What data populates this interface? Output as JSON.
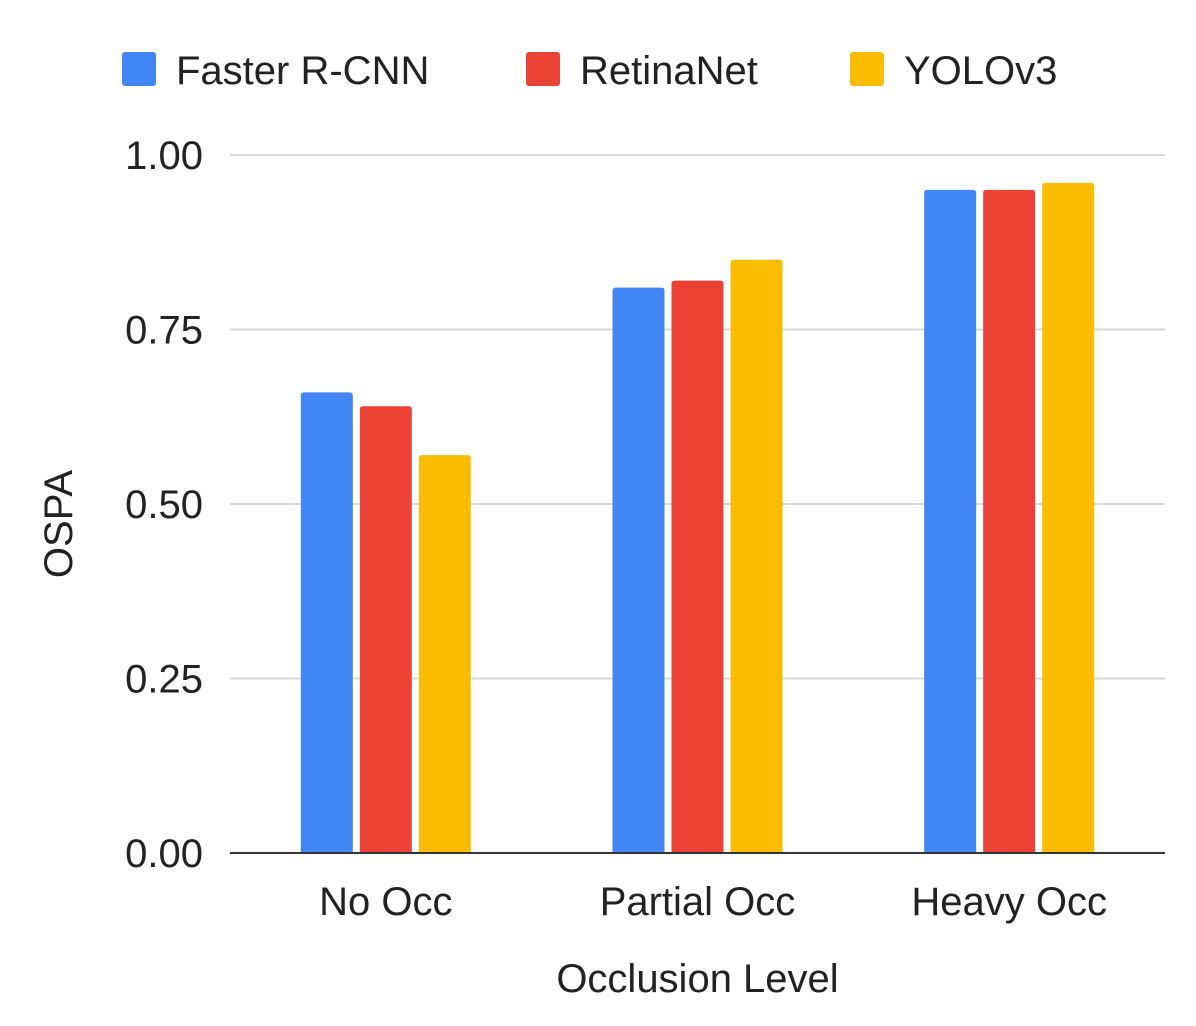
{
  "chart_data": {
    "type": "bar",
    "title": "",
    "xlabel": "Occlusion Level",
    "ylabel": "OSPA",
    "categories": [
      "No Occ",
      "Partial Occ",
      "Heavy Occ"
    ],
    "series": [
      {
        "name": "Faster R-CNN",
        "color": "#4285F4",
        "values": [
          0.66,
          0.81,
          0.95
        ]
      },
      {
        "name": "RetinaNet",
        "color": "#EA4335",
        "values": [
          0.64,
          0.82,
          0.95
        ]
      },
      {
        "name": "YOLOv3",
        "color": "#FBBC04",
        "values": [
          0.57,
          0.85,
          0.96
        ]
      }
    ],
    "ylim": [
      0,
      1
    ],
    "yticks": [
      "0.00",
      "0.25",
      "0.50",
      "0.75",
      "1.00"
    ],
    "grid": true,
    "legend_position": "top"
  }
}
